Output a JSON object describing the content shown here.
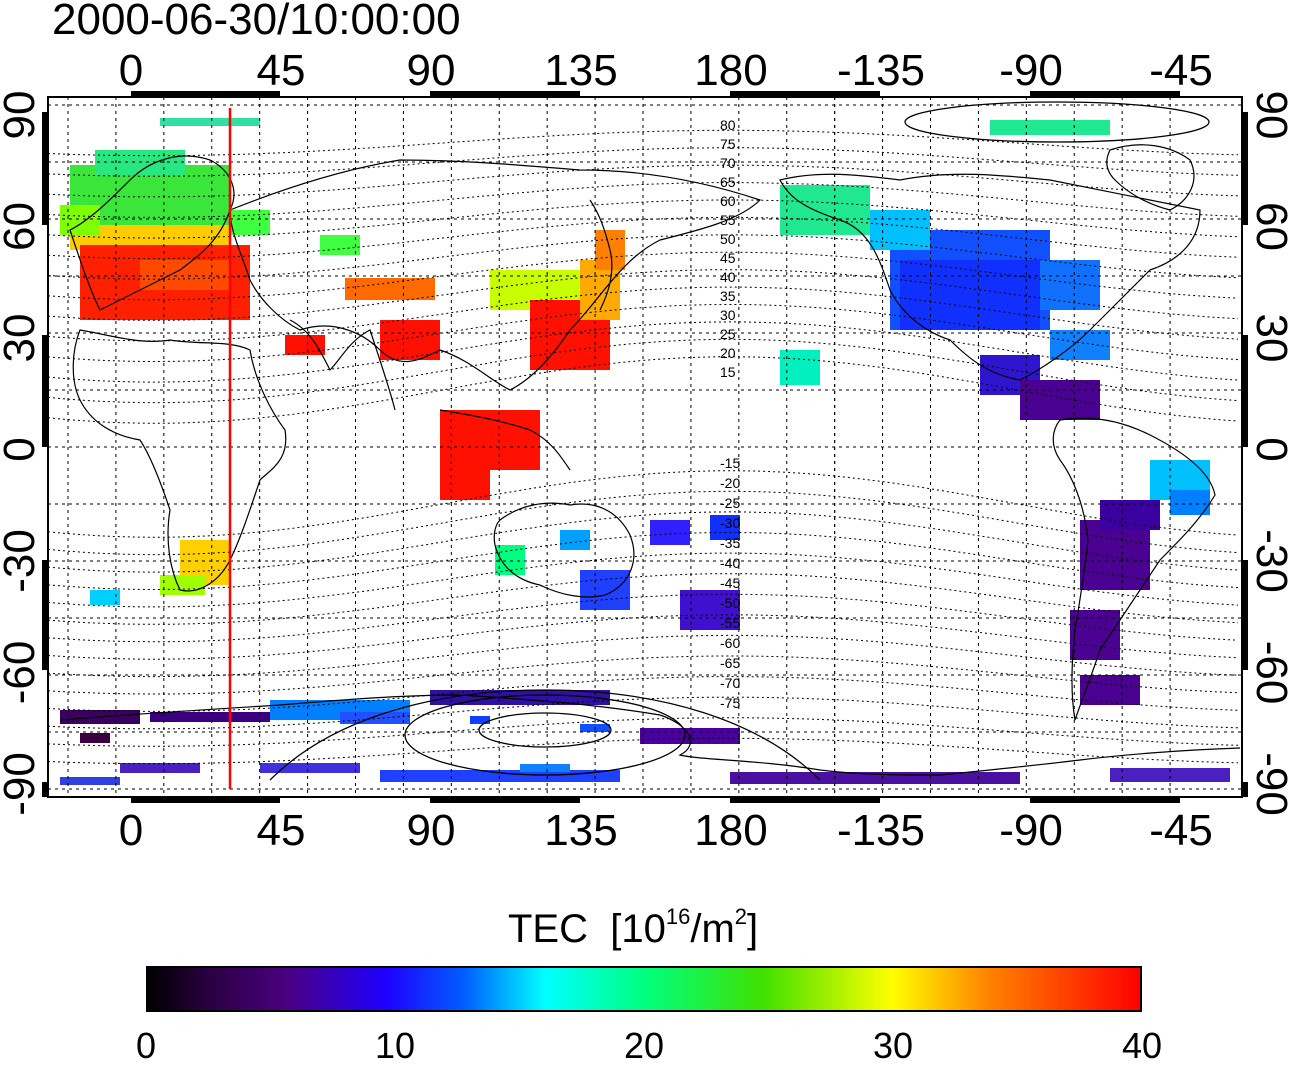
{
  "timestamp": "2000-06-30/10:00:00",
  "top_axis_labels": [
    "0",
    "45",
    "90",
    "135",
    "180",
    "-135",
    "-90",
    "-45"
  ],
  "bottom_axis_labels": [
    "0",
    "45",
    "90",
    "135",
    "180",
    "-135",
    "-90",
    "-45"
  ],
  "left_axis_labels": [
    "90",
    "60",
    "30",
    "0",
    "-30",
    "-60",
    "-90"
  ],
  "right_axis_labels": [
    "90",
    "60",
    "30",
    "0",
    "-30",
    "-60",
    "-90"
  ],
  "contour_labels_north": [
    "80",
    "75",
    "70",
    "65",
    "60",
    "55",
    "50",
    "45",
    "40",
    "35",
    "30",
    "25",
    "20",
    "15"
  ],
  "contour_labels_south": [
    "-15",
    "-20",
    "-25",
    "-30",
    "-35",
    "-40",
    "-45",
    "-50",
    "-55",
    "-60",
    "-65",
    "-70",
    "-75"
  ],
  "colorbar": {
    "title": "TEC",
    "unit_prefix": "[10",
    "unit_exp1": "16",
    "unit_mid": "/m",
    "unit_exp2": "2",
    "unit_suffix": "]",
    "ticks": [
      "0",
      "10",
      "20",
      "30",
      "40"
    ],
    "range": [
      0,
      40
    ]
  },
  "map": {
    "lon_center": 120,
    "lat_range": [
      -90,
      90
    ],
    "meridian_marker_lon": 30,
    "marker_color": "#ff0000"
  }
}
